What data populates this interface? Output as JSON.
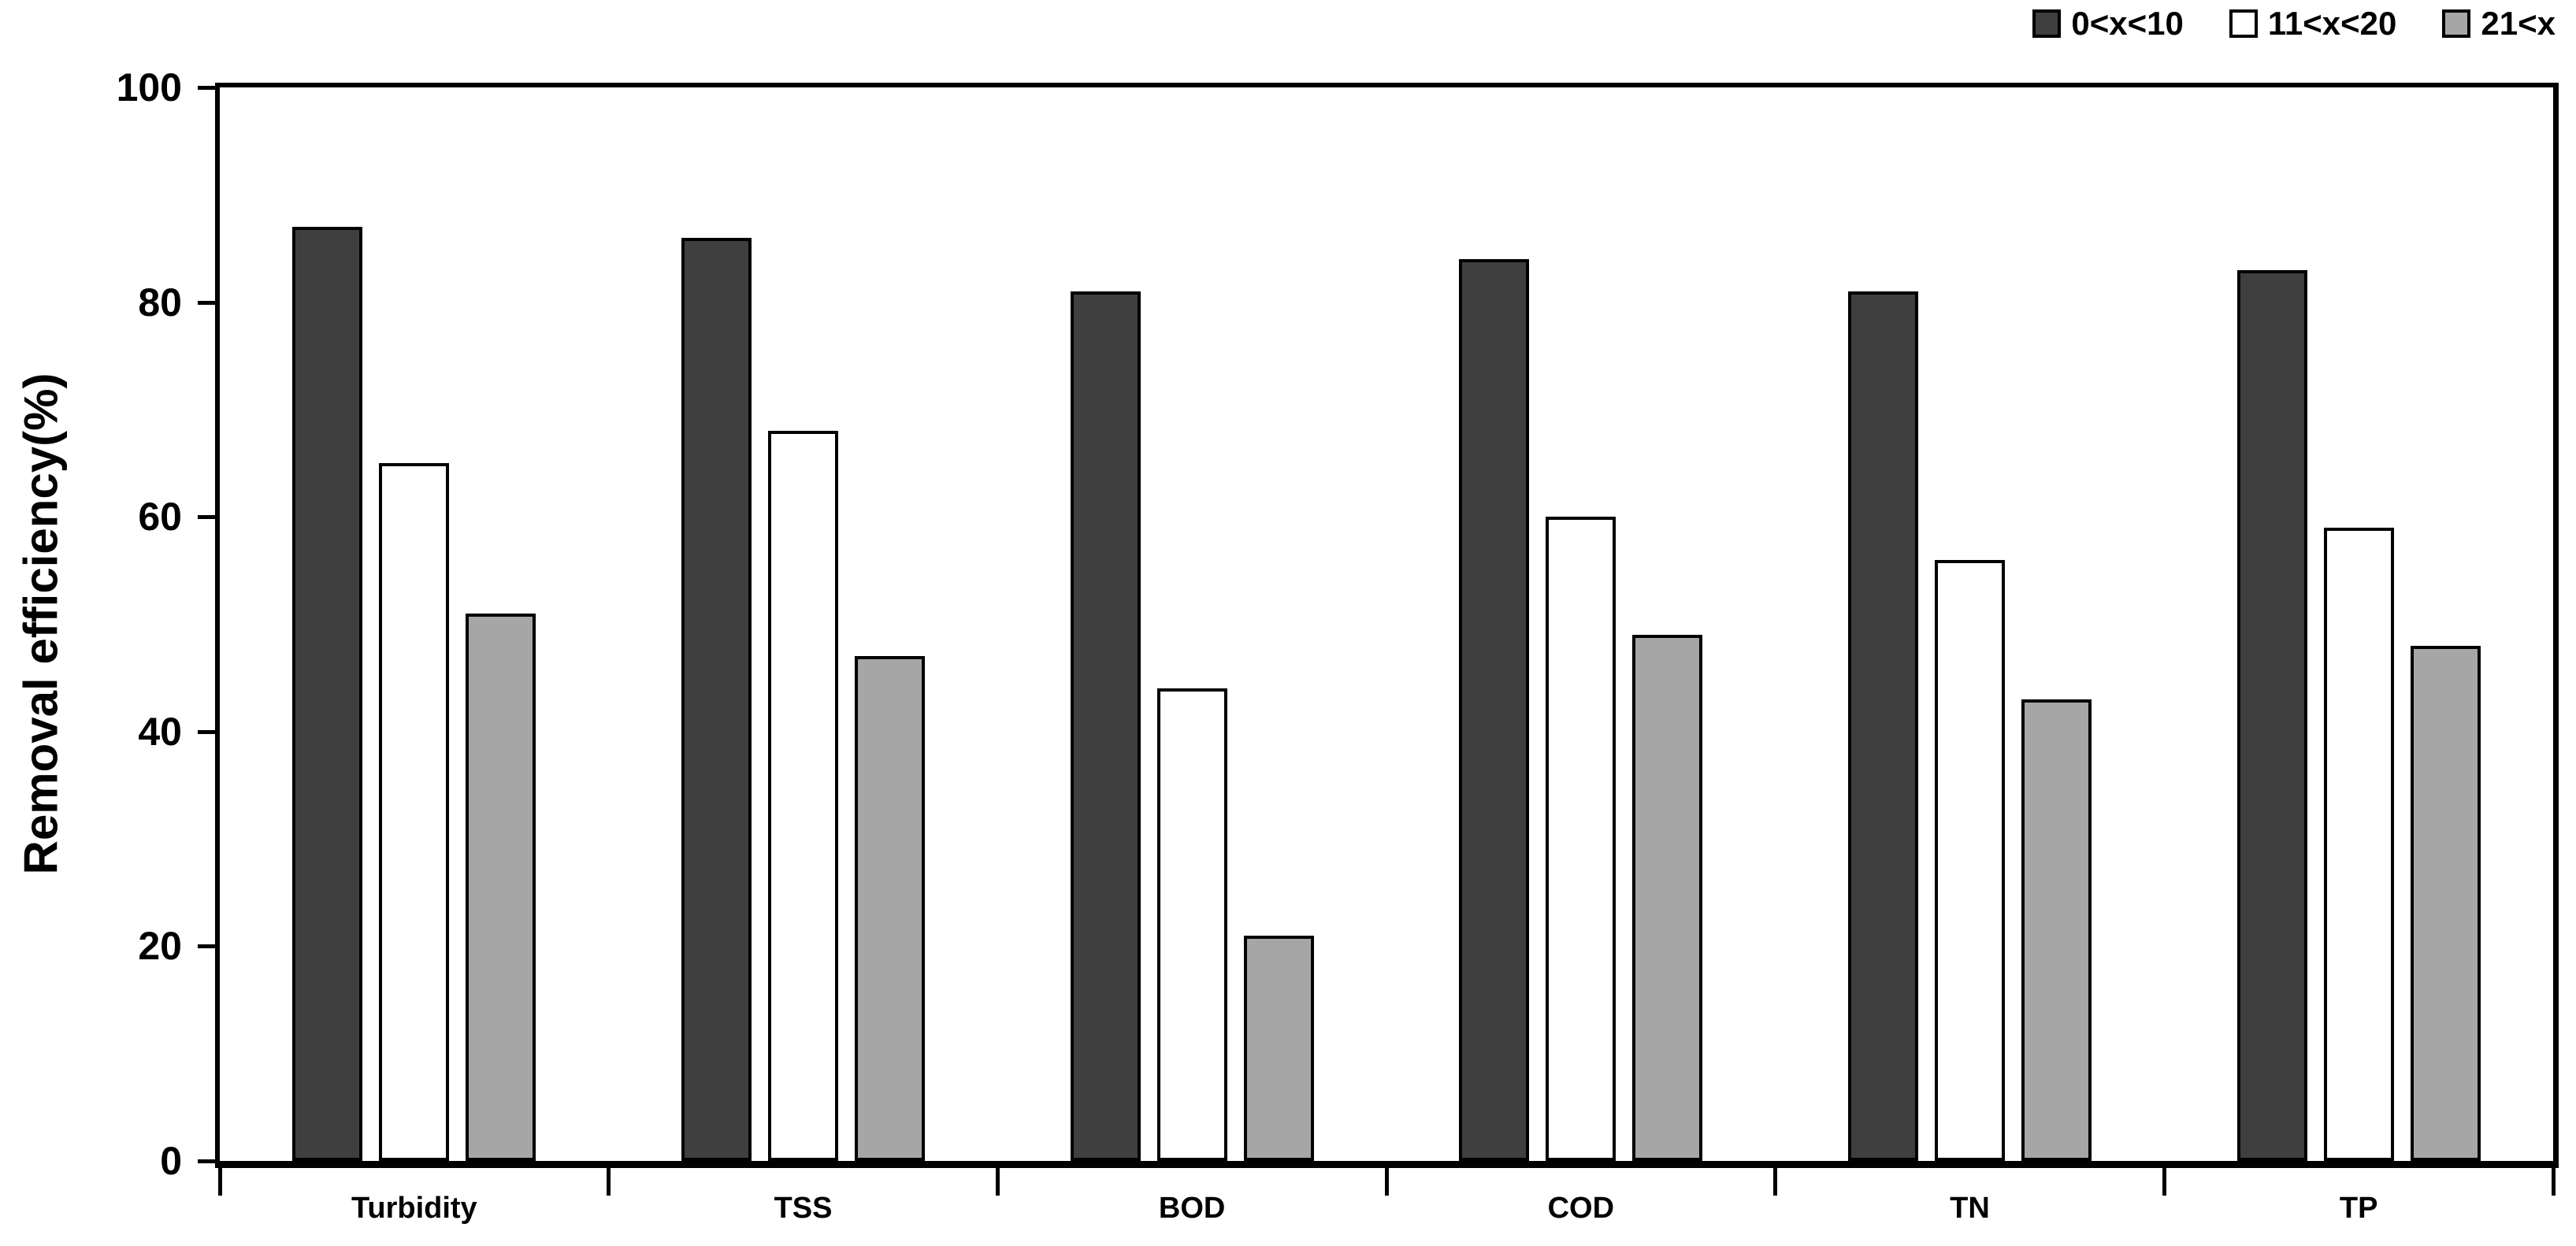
{
  "chart_data": {
    "type": "bar",
    "title": "",
    "categories": [
      "Turbidity",
      "TSS",
      "BOD",
      "COD",
      "TN",
      "TP"
    ],
    "series": [
      {
        "name": "0<x<10",
        "fill": "#3f3f3f",
        "values": [
          87,
          86,
          81,
          84,
          81,
          83
        ]
      },
      {
        "name": "11<x<20",
        "fill": "#ffffff",
        "values": [
          65,
          68,
          44,
          60,
          56,
          59
        ]
      },
      {
        "name": "21<x",
        "fill": "#a6a6a6",
        "values": [
          51,
          47,
          21,
          49,
          43,
          48
        ]
      }
    ],
    "xlabel": "",
    "ylabel": "Removal efficiency(%)",
    "ylim": [
      0,
      100
    ],
    "yticks": [
      0,
      20,
      40,
      60,
      80,
      100
    ],
    "grid": false,
    "legend_position": "top-right",
    "bar_border_color": "#000000",
    "axis_color": "#000000"
  }
}
